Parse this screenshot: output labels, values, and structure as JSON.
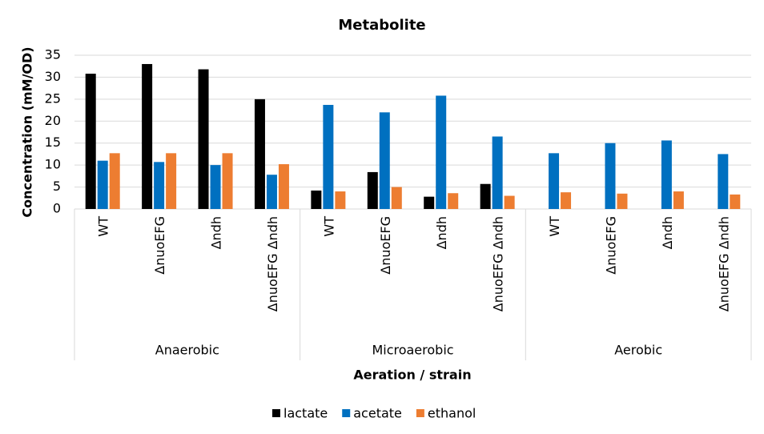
{
  "chart_data": {
    "type": "bar",
    "title": "Metabolite",
    "x_label": "Aeration / strain",
    "y_label": "Concentration (mM/OD)",
    "groups": [
      "Anaerobic",
      "Microaerobic",
      "Aerobic"
    ],
    "categories": [
      "WT",
      "ΔnuoEFG",
      "Δndh",
      "ΔnuoEFG Δndh",
      "WT",
      "ΔnuoEFG",
      "Δndh",
      "ΔnuoEFG Δndh",
      "WT",
      "ΔnuoEFG",
      "Δndh",
      "ΔnuoEFG Δndh"
    ],
    "series": [
      {
        "name": "lactate",
        "color": "#000000",
        "values": [
          30.8,
          33,
          31.8,
          25,
          4.2,
          8.4,
          2.8,
          5.7,
          0,
          0,
          0,
          0
        ]
      },
      {
        "name": "acetate",
        "color": "#0070c0",
        "values": [
          11,
          10.7,
          10,
          7.8,
          23.7,
          22,
          25.8,
          16.5,
          12.7,
          15,
          15.6,
          12.5
        ]
      },
      {
        "name": "ethanol",
        "color": "#ed7d31",
        "values": [
          12.7,
          12.7,
          12.7,
          10.2,
          4,
          5,
          3.6,
          3,
          3.8,
          3.5,
          4,
          3.3
        ]
      }
    ],
    "ylim": [
      0,
      35
    ],
    "yticks": [
      0,
      5,
      10,
      15,
      20,
      25,
      30,
      35
    ],
    "grid": true,
    "legend": "bottom"
  }
}
